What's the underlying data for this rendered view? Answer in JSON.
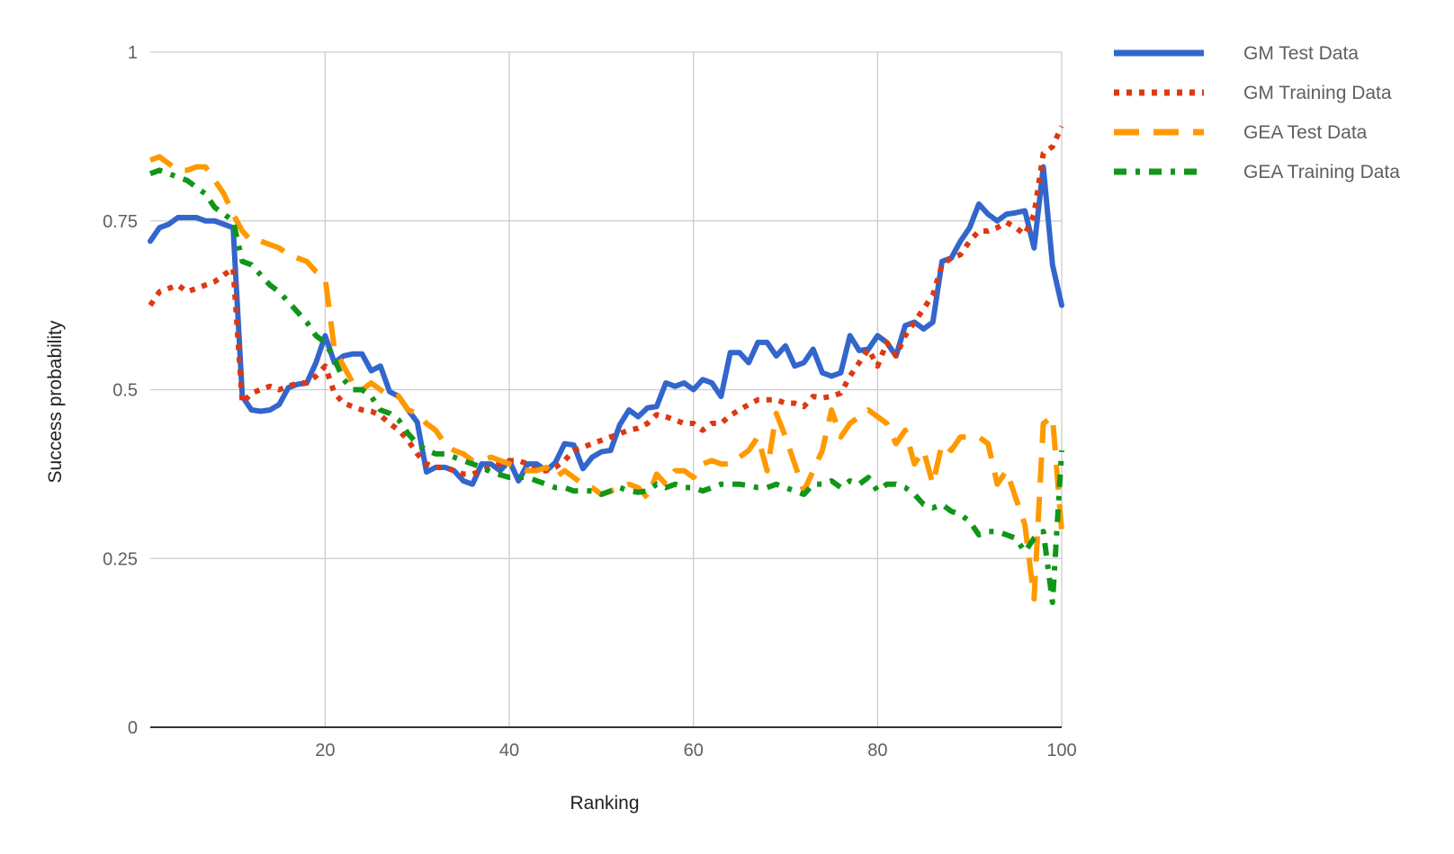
{
  "chart_data": {
    "type": "line",
    "xlabel": "Ranking",
    "ylabel": "Success probability",
    "xlim": [
      1,
      100
    ],
    "ylim": [
      0,
      1
    ],
    "x_ticks": [
      20,
      40,
      60,
      80,
      100
    ],
    "x_tick_labels": [
      "20",
      "40",
      "60",
      "80",
      "100"
    ],
    "y_ticks": [
      0,
      0.25,
      0.5,
      0.75,
      1
    ],
    "y_tick_labels": [
      "0",
      "0.25",
      "0.5",
      "0.75",
      "1"
    ],
    "grid": true,
    "legend_position": "right",
    "series": [
      {
        "name": "GM Test Data",
        "color": "#3366cc",
        "style": "solid",
        "x": [
          1,
          2,
          3,
          4,
          5,
          6,
          7,
          8,
          9,
          10,
          11,
          12,
          13,
          14,
          15,
          16,
          17,
          18,
          19,
          20,
          21,
          22,
          23,
          24,
          25,
          26,
          27,
          28,
          29,
          30,
          31,
          32,
          33,
          34,
          35,
          36,
          37,
          38,
          39,
          40,
          41,
          42,
          43,
          44,
          45,
          46,
          47,
          48,
          49,
          50,
          51,
          52,
          53,
          54,
          55,
          56,
          57,
          58,
          59,
          60,
          61,
          62,
          63,
          64,
          65,
          66,
          67,
          68,
          69,
          70,
          71,
          72,
          73,
          74,
          75,
          76,
          77,
          78,
          79,
          80,
          81,
          82,
          83,
          84,
          85,
          86,
          87,
          88,
          89,
          90,
          91,
          92,
          93,
          94,
          95,
          96,
          97,
          98,
          99,
          100
        ],
        "y": [
          0.72,
          0.74,
          0.745,
          0.755,
          0.755,
          0.755,
          0.75,
          0.75,
          0.745,
          0.74,
          0.49,
          0.47,
          0.468,
          0.47,
          0.478,
          0.503,
          0.508,
          0.51,
          0.54,
          0.58,
          0.54,
          0.55,
          0.553,
          0.553,
          0.528,
          0.535,
          0.497,
          0.49,
          0.47,
          0.452,
          0.378,
          0.385,
          0.385,
          0.38,
          0.365,
          0.36,
          0.39,
          0.39,
          0.38,
          0.395,
          0.365,
          0.39,
          0.39,
          0.38,
          0.392,
          0.42,
          0.418,
          0.383,
          0.4,
          0.408,
          0.41,
          0.448,
          0.47,
          0.46,
          0.473,
          0.475,
          0.51,
          0.505,
          0.51,
          0.5,
          0.515,
          0.51,
          0.49,
          0.555,
          0.555,
          0.54,
          0.57,
          0.57,
          0.55,
          0.565,
          0.535,
          0.54,
          0.56,
          0.525,
          0.52,
          0.525,
          0.58,
          0.558,
          0.56,
          0.58,
          0.57,
          0.55,
          0.595,
          0.6,
          0.59,
          0.6,
          0.69,
          0.695,
          0.72,
          0.74,
          0.775,
          0.76,
          0.75,
          0.76,
          0.762,
          0.765,
          0.71,
          0.83,
          0.685,
          0.625
        ]
      },
      {
        "name": "GM Training Data",
        "color": "#dc3912",
        "style": "dotted",
        "x": [
          1,
          2,
          3,
          4,
          5,
          6,
          7,
          8,
          9,
          10,
          11,
          12,
          13,
          14,
          15,
          16,
          17,
          18,
          19,
          20,
          21,
          22,
          23,
          24,
          25,
          26,
          27,
          28,
          29,
          30,
          31,
          32,
          33,
          34,
          35,
          36,
          37,
          38,
          39,
          40,
          41,
          42,
          43,
          44,
          45,
          46,
          47,
          48,
          49,
          50,
          51,
          52,
          53,
          54,
          55,
          56,
          57,
          58,
          59,
          60,
          61,
          62,
          63,
          64,
          65,
          66,
          67,
          68,
          69,
          70,
          71,
          72,
          73,
          74,
          75,
          76,
          77,
          78,
          79,
          80,
          81,
          82,
          83,
          84,
          85,
          86,
          87,
          88,
          89,
          90,
          91,
          92,
          93,
          94,
          95,
          96,
          97,
          98,
          99,
          100
        ],
        "y": [
          0.625,
          0.645,
          0.65,
          0.655,
          0.645,
          0.65,
          0.655,
          0.66,
          0.67,
          0.68,
          0.48,
          0.495,
          0.5,
          0.505,
          0.5,
          0.505,
          0.51,
          0.51,
          0.52,
          0.535,
          0.495,
          0.48,
          0.475,
          0.47,
          0.468,
          0.462,
          0.45,
          0.44,
          0.425,
          0.405,
          0.39,
          0.385,
          0.385,
          0.38,
          0.375,
          0.375,
          0.38,
          0.385,
          0.39,
          0.395,
          0.395,
          0.39,
          0.38,
          0.38,
          0.385,
          0.395,
          0.41,
          0.415,
          0.42,
          0.425,
          0.43,
          0.435,
          0.44,
          0.443,
          0.45,
          0.463,
          0.46,
          0.455,
          0.45,
          0.45,
          0.44,
          0.45,
          0.45,
          0.462,
          0.47,
          0.478,
          0.485,
          0.485,
          0.485,
          0.48,
          0.48,
          0.475,
          0.49,
          0.488,
          0.49,
          0.495,
          0.52,
          0.54,
          0.56,
          0.535,
          0.57,
          0.55,
          0.58,
          0.6,
          0.62,
          0.64,
          0.685,
          0.695,
          0.7,
          0.72,
          0.735,
          0.735,
          0.74,
          0.748,
          0.74,
          0.73,
          0.76,
          0.85,
          0.86,
          0.89
        ]
      },
      {
        "name": "GEA Test Data",
        "color": "#ff9900",
        "style": "dashed",
        "x": [
          1,
          2,
          3,
          4,
          5,
          6,
          7,
          8,
          9,
          10,
          11,
          12,
          13,
          14,
          15,
          16,
          17,
          18,
          19,
          20,
          21,
          22,
          23,
          24,
          25,
          26,
          27,
          28,
          29,
          30,
          31,
          32,
          33,
          34,
          35,
          36,
          37,
          38,
          39,
          40,
          41,
          42,
          43,
          44,
          45,
          46,
          47,
          48,
          49,
          50,
          51,
          52,
          53,
          54,
          55,
          56,
          57,
          58,
          59,
          60,
          61,
          62,
          63,
          64,
          65,
          66,
          67,
          68,
          69,
          70,
          71,
          72,
          73,
          74,
          75,
          76,
          77,
          78,
          79,
          80,
          81,
          82,
          83,
          84,
          85,
          86,
          87,
          88,
          89,
          90,
          91,
          92,
          93,
          94,
          95,
          96,
          97,
          98,
          99,
          100
        ],
        "y": [
          0.84,
          0.845,
          0.835,
          0.825,
          0.825,
          0.83,
          0.83,
          0.81,
          0.79,
          0.76,
          0.735,
          0.72,
          0.72,
          0.715,
          0.71,
          0.7,
          0.695,
          0.69,
          0.675,
          0.665,
          0.56,
          0.535,
          0.51,
          0.5,
          0.51,
          0.5,
          0.49,
          0.49,
          0.47,
          0.465,
          0.45,
          0.44,
          0.42,
          0.41,
          0.405,
          0.395,
          0.395,
          0.4,
          0.395,
          0.39,
          0.385,
          0.38,
          0.38,
          0.385,
          0.37,
          0.38,
          0.37,
          0.36,
          0.355,
          0.345,
          0.35,
          0.355,
          0.36,
          0.355,
          0.34,
          0.375,
          0.36,
          0.38,
          0.38,
          0.37,
          0.39,
          0.395,
          0.39,
          0.39,
          0.4,
          0.41,
          0.43,
          0.38,
          0.465,
          0.43,
          0.39,
          0.35,
          0.38,
          0.41,
          0.47,
          0.43,
          0.45,
          0.46,
          0.47,
          0.46,
          0.45,
          0.42,
          0.44,
          0.39,
          0.41,
          0.36,
          0.42,
          0.41,
          0.43,
          0.43,
          0.43,
          0.42,
          0.36,
          0.38,
          0.34,
          0.3,
          0.19,
          0.45,
          0.46,
          0.29
        ]
      },
      {
        "name": "GEA Training Data",
        "color": "#109618",
        "style": "dashdot",
        "x": [
          1,
          2,
          3,
          4,
          5,
          6,
          7,
          8,
          9,
          10,
          11,
          12,
          13,
          14,
          15,
          16,
          17,
          18,
          19,
          20,
          21,
          22,
          23,
          24,
          25,
          26,
          27,
          28,
          29,
          30,
          31,
          32,
          33,
          34,
          35,
          36,
          37,
          38,
          39,
          40,
          41,
          42,
          43,
          44,
          45,
          46,
          47,
          48,
          49,
          50,
          51,
          52,
          53,
          54,
          55,
          56,
          57,
          58,
          59,
          60,
          61,
          62,
          63,
          64,
          65,
          66,
          67,
          68,
          69,
          70,
          71,
          72,
          73,
          74,
          75,
          76,
          77,
          78,
          79,
          80,
          81,
          82,
          83,
          84,
          85,
          86,
          87,
          88,
          89,
          90,
          91,
          92,
          93,
          94,
          95,
          96,
          97,
          98,
          99,
          100
        ],
        "y": [
          0.82,
          0.825,
          0.82,
          0.815,
          0.81,
          0.8,
          0.79,
          0.77,
          0.76,
          0.75,
          0.69,
          0.685,
          0.67,
          0.655,
          0.645,
          0.63,
          0.615,
          0.6,
          0.58,
          0.57,
          0.545,
          0.515,
          0.5,
          0.5,
          0.49,
          0.47,
          0.465,
          0.455,
          0.435,
          0.42,
          0.41,
          0.405,
          0.405,
          0.4,
          0.395,
          0.39,
          0.385,
          0.378,
          0.374,
          0.37,
          0.37,
          0.37,
          0.365,
          0.36,
          0.355,
          0.355,
          0.35,
          0.35,
          0.35,
          0.345,
          0.35,
          0.355,
          0.35,
          0.348,
          0.35,
          0.36,
          0.355,
          0.36,
          0.355,
          0.355,
          0.35,
          0.355,
          0.36,
          0.36,
          0.36,
          0.358,
          0.355,
          0.355,
          0.36,
          0.355,
          0.35,
          0.345,
          0.36,
          0.36,
          0.365,
          0.355,
          0.365,
          0.36,
          0.37,
          0.35,
          0.36,
          0.36,
          0.355,
          0.345,
          0.33,
          0.325,
          0.33,
          0.32,
          0.315,
          0.305,
          0.285,
          0.29,
          0.29,
          0.285,
          0.28,
          0.26,
          0.28,
          0.29,
          0.185,
          0.41
        ]
      }
    ]
  }
}
